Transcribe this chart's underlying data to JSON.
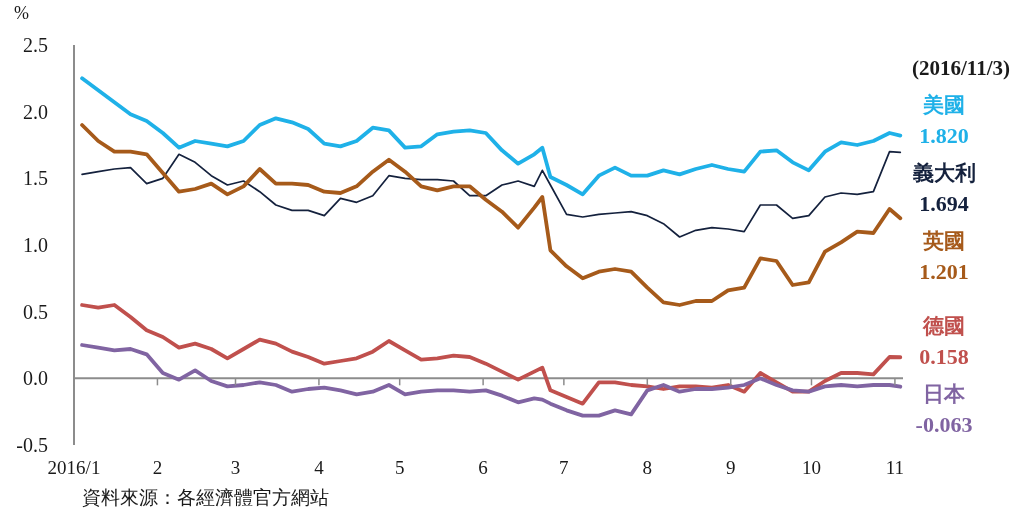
{
  "chart_data": {
    "type": "line",
    "ylabel": "%",
    "annotations": [
      "(2016/11/3)",
      "資料來源：各經濟體官方網站"
    ],
    "x": [
      "2016-01-04",
      "2016-01-10",
      "2016-01-16",
      "2016-01-22",
      "2016-01-28",
      "2016-02-03",
      "2016-02-09",
      "2016-02-15",
      "2016-02-21",
      "2016-02-27",
      "2016-03-04",
      "2016-03-10",
      "2016-03-16",
      "2016-03-22",
      "2016-03-28",
      "2016-04-03",
      "2016-04-09",
      "2016-04-15",
      "2016-04-21",
      "2016-04-27",
      "2016-05-03",
      "2016-05-09",
      "2016-05-15",
      "2016-05-21",
      "2016-05-27",
      "2016-06-02",
      "2016-06-08",
      "2016-06-14",
      "2016-06-20",
      "2016-06-23",
      "2016-06-26",
      "2016-07-02",
      "2016-07-08",
      "2016-07-14",
      "2016-07-20",
      "2016-07-26",
      "2016-08-01",
      "2016-08-07",
      "2016-08-13",
      "2016-08-19",
      "2016-08-25",
      "2016-08-31",
      "2016-09-06",
      "2016-09-12",
      "2016-09-18",
      "2016-09-24",
      "2016-09-30",
      "2016-10-06",
      "2016-10-12",
      "2016-10-18",
      "2016-10-24",
      "2016-10-30",
      "2016-11-03"
    ],
    "series": [
      {
        "name": "美國",
        "color": "#1fb1e8",
        "values": [
          2.25,
          2.16,
          2.07,
          1.98,
          1.93,
          1.84,
          1.73,
          1.78,
          1.76,
          1.74,
          1.78,
          1.9,
          1.95,
          1.92,
          1.87,
          1.76,
          1.74,
          1.78,
          1.88,
          1.86,
          1.73,
          1.74,
          1.83,
          1.85,
          1.86,
          1.84,
          1.71,
          1.61,
          1.68,
          1.73,
          1.51,
          1.45,
          1.38,
          1.52,
          1.58,
          1.52,
          1.52,
          1.56,
          1.53,
          1.57,
          1.6,
          1.57,
          1.55,
          1.7,
          1.71,
          1.62,
          1.56,
          1.7,
          1.77,
          1.75,
          1.78,
          1.84,
          1.82
        ],
        "value_labels": [
          null,
          null,
          null,
          null,
          null,
          null,
          null,
          null,
          null,
          null,
          null,
          null,
          null,
          null,
          null,
          null,
          null,
          null,
          null,
          null,
          null,
          null,
          null,
          null,
          null,
          null,
          null,
          null,
          null,
          null,
          null,
          null,
          null,
          null,
          null,
          null,
          null,
          null,
          null,
          null,
          null,
          null,
          null,
          null,
          null,
          null,
          null,
          null,
          null,
          null,
          null,
          null,
          "1.820"
        ]
      },
      {
        "name": "義大利",
        "color": "#14213d",
        "values": [
          1.53,
          1.55,
          1.57,
          1.58,
          1.46,
          1.5,
          1.68,
          1.62,
          1.52,
          1.45,
          1.48,
          1.4,
          1.3,
          1.26,
          1.26,
          1.22,
          1.35,
          1.32,
          1.37,
          1.52,
          1.5,
          1.49,
          1.49,
          1.48,
          1.37,
          1.37,
          1.45,
          1.48,
          1.44,
          1.56,
          1.45,
          1.23,
          1.21,
          1.23,
          1.24,
          1.25,
          1.22,
          1.16,
          1.06,
          1.11,
          1.13,
          1.12,
          1.1,
          1.3,
          1.3,
          1.2,
          1.22,
          1.36,
          1.39,
          1.38,
          1.4,
          1.7,
          1.694
        ],
        "value_labels": [
          null,
          null,
          null,
          null,
          null,
          null,
          null,
          null,
          null,
          null,
          null,
          null,
          null,
          null,
          null,
          null,
          null,
          null,
          null,
          null,
          null,
          null,
          null,
          null,
          null,
          null,
          null,
          null,
          null,
          null,
          null,
          null,
          null,
          null,
          null,
          null,
          null,
          null,
          null,
          null,
          null,
          null,
          null,
          null,
          null,
          null,
          null,
          null,
          null,
          null,
          null,
          null,
          "1.694"
        ]
      },
      {
        "name": "英國",
        "color": "#a65a1a",
        "values": [
          1.9,
          1.78,
          1.7,
          1.7,
          1.68,
          1.54,
          1.4,
          1.42,
          1.46,
          1.38,
          1.44,
          1.57,
          1.46,
          1.46,
          1.45,
          1.4,
          1.39,
          1.44,
          1.55,
          1.64,
          1.55,
          1.44,
          1.41,
          1.44,
          1.44,
          1.34,
          1.25,
          1.13,
          1.28,
          1.36,
          0.96,
          0.84,
          0.75,
          0.8,
          0.82,
          0.8,
          0.68,
          0.57,
          0.55,
          0.58,
          0.58,
          0.66,
          0.68,
          0.9,
          0.88,
          0.7,
          0.72,
          0.95,
          1.02,
          1.1,
          1.09,
          1.27,
          1.201
        ],
        "value_labels": [
          null,
          null,
          null,
          null,
          null,
          null,
          null,
          null,
          null,
          null,
          null,
          null,
          null,
          null,
          null,
          null,
          null,
          null,
          null,
          null,
          null,
          null,
          null,
          null,
          null,
          null,
          null,
          null,
          null,
          null,
          null,
          null,
          null,
          null,
          null,
          null,
          null,
          null,
          null,
          null,
          null,
          null,
          null,
          null,
          null,
          null,
          null,
          null,
          null,
          null,
          null,
          null,
          "1.201"
        ]
      },
      {
        "name": "德國",
        "color": "#c0504d",
        "values": [
          0.55,
          0.53,
          0.55,
          0.46,
          0.36,
          0.31,
          0.23,
          0.26,
          0.22,
          0.15,
          0.22,
          0.29,
          0.26,
          0.2,
          0.16,
          0.11,
          0.13,
          0.15,
          0.2,
          0.28,
          0.21,
          0.14,
          0.15,
          0.17,
          0.16,
          0.11,
          0.05,
          -0.01,
          0.05,
          0.08,
          -0.09,
          -0.14,
          -0.19,
          -0.03,
          -0.03,
          -0.05,
          -0.06,
          -0.08,
          -0.06,
          -0.06,
          -0.07,
          -0.05,
          -0.1,
          0.04,
          -0.03,
          -0.1,
          -0.1,
          -0.02,
          0.04,
          0.04,
          0.03,
          0.16,
          0.158
        ],
        "value_labels": [
          null,
          null,
          null,
          null,
          null,
          null,
          null,
          null,
          null,
          null,
          null,
          null,
          null,
          null,
          null,
          null,
          null,
          null,
          null,
          null,
          null,
          null,
          null,
          null,
          null,
          null,
          null,
          null,
          null,
          null,
          null,
          null,
          null,
          null,
          null,
          null,
          null,
          null,
          null,
          null,
          null,
          null,
          null,
          null,
          null,
          null,
          null,
          null,
          null,
          null,
          null,
          null,
          "0.158"
        ]
      },
      {
        "name": "日本",
        "color": "#8064a2",
        "values": [
          0.25,
          0.23,
          0.21,
          0.22,
          0.18,
          0.04,
          -0.01,
          0.06,
          -0.02,
          -0.06,
          -0.05,
          -0.03,
          -0.05,
          -0.1,
          -0.08,
          -0.07,
          -0.09,
          -0.12,
          -0.1,
          -0.05,
          -0.12,
          -0.1,
          -0.09,
          -0.09,
          -0.1,
          -0.09,
          -0.13,
          -0.18,
          -0.15,
          -0.16,
          -0.19,
          -0.24,
          -0.28,
          -0.28,
          -0.24,
          -0.27,
          -0.09,
          -0.05,
          -0.1,
          -0.08,
          -0.08,
          -0.07,
          -0.05,
          0.0,
          -0.05,
          -0.09,
          -0.1,
          -0.06,
          -0.05,
          -0.06,
          -0.05,
          -0.05,
          -0.063
        ],
        "value_labels": [
          null,
          null,
          null,
          null,
          null,
          null,
          null,
          null,
          null,
          null,
          null,
          null,
          null,
          null,
          null,
          null,
          null,
          null,
          null,
          null,
          null,
          null,
          null,
          null,
          null,
          null,
          null,
          null,
          null,
          null,
          null,
          null,
          null,
          null,
          null,
          null,
          null,
          null,
          null,
          null,
          null,
          null,
          null,
          null,
          null,
          null,
          null,
          null,
          null,
          null,
          null,
          null,
          "-0.063"
        ]
      }
    ],
    "xlim": [
      "2016-01-01",
      "2016-11-04"
    ],
    "xticks": [
      {
        "value": "2016-01-01",
        "label": "2016/1"
      },
      {
        "value": "2016-02-01",
        "label": "2"
      },
      {
        "value": "2016-03-01",
        "label": "3"
      },
      {
        "value": "2016-04-01",
        "label": "4"
      },
      {
        "value": "2016-05-01",
        "label": "5"
      },
      {
        "value": "2016-06-01",
        "label": "6"
      },
      {
        "value": "2016-07-01",
        "label": "7"
      },
      {
        "value": "2016-08-01",
        "label": "8"
      },
      {
        "value": "2016-09-01",
        "label": "9"
      },
      {
        "value": "2016-10-01",
        "label": "10"
      },
      {
        "value": "2016-11-01",
        "label": "11"
      }
    ],
    "ylim": [
      -0.5,
      2.5
    ],
    "yticks": [
      -0.5,
      {
        "value": 0,
        "label": "0.0"
      },
      0.5,
      {
        "value": 1,
        "label": "1.0"
      },
      1.5,
      {
        "value": 2,
        "label": "2.0"
      },
      2.5
    ],
    "ref_lines": [
      {
        "axis": "y",
        "value": 0,
        "color": "#8c8c8c"
      }
    ]
  }
}
